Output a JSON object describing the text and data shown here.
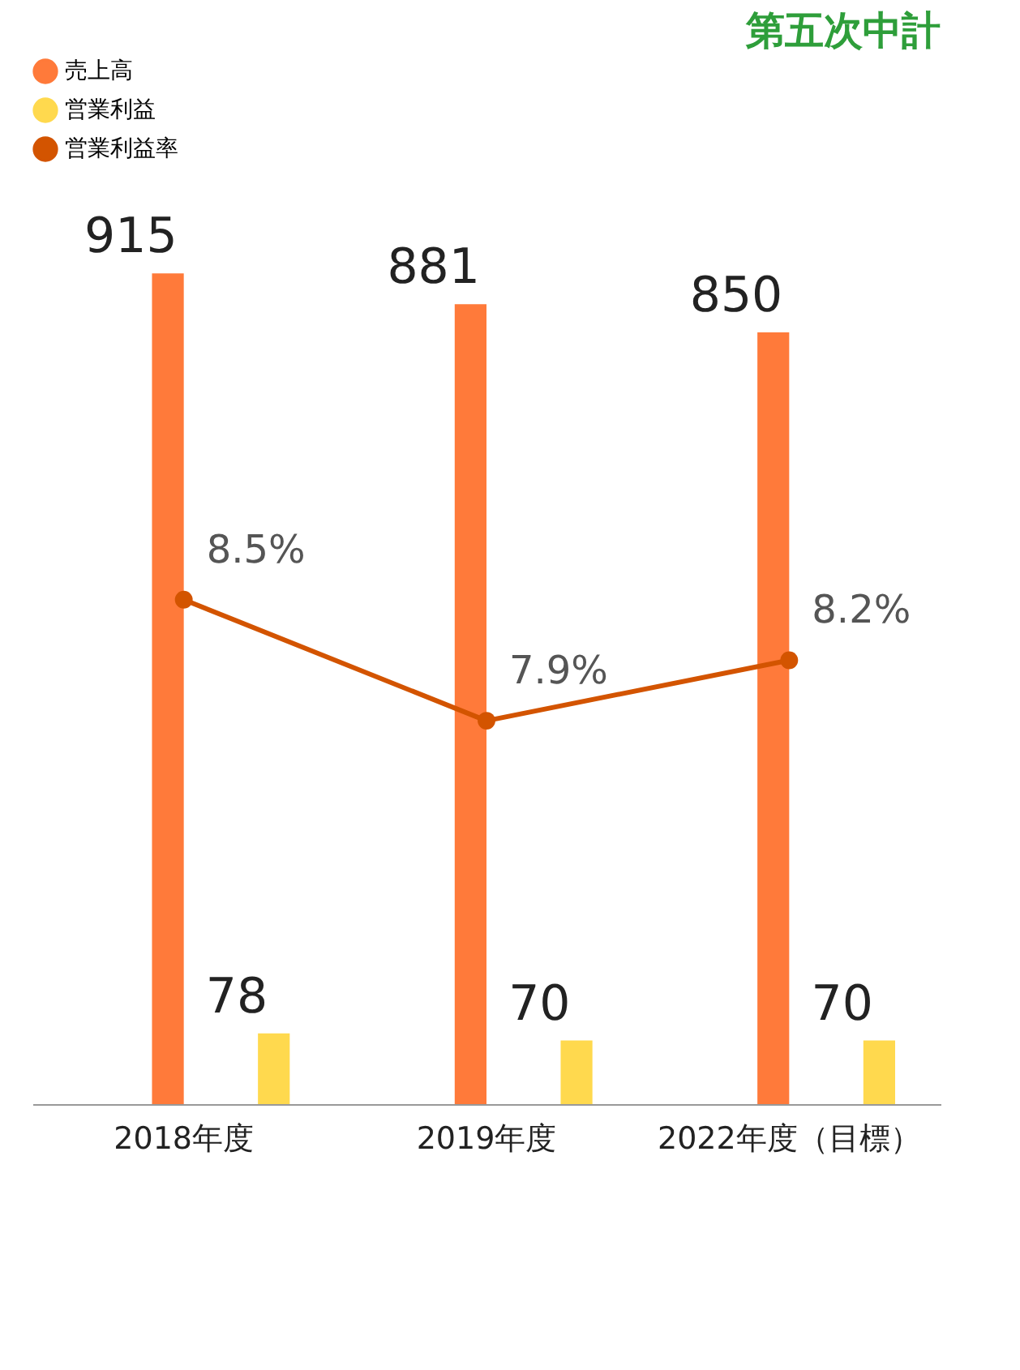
{
  "chart_data": {
    "type": "bar",
    "title": "第五次中計",
    "categories": [
      "2018年度",
      "2019年度",
      "2022年度（目標）"
    ],
    "series": [
      {
        "name": "売上高",
        "color": "#ff7a3a",
        "values": [
          915,
          881,
          850
        ],
        "value_labels": [
          "915",
          "881",
          "850"
        ]
      },
      {
        "name": "営業利益",
        "color": "#ffd94e",
        "values": [
          78,
          70,
          70
        ],
        "value_labels": [
          "78",
          "70",
          "70"
        ]
      },
      {
        "name": "営業利益率",
        "type": "line",
        "axis": "y2",
        "color": "#d35400",
        "values": [
          8.5,
          7.9,
          8.2
        ],
        "value_labels": [
          "8.5%",
          "7.9%",
          "8.2%"
        ]
      }
    ],
    "legend": "top left",
    "marker": "circle"
  }
}
